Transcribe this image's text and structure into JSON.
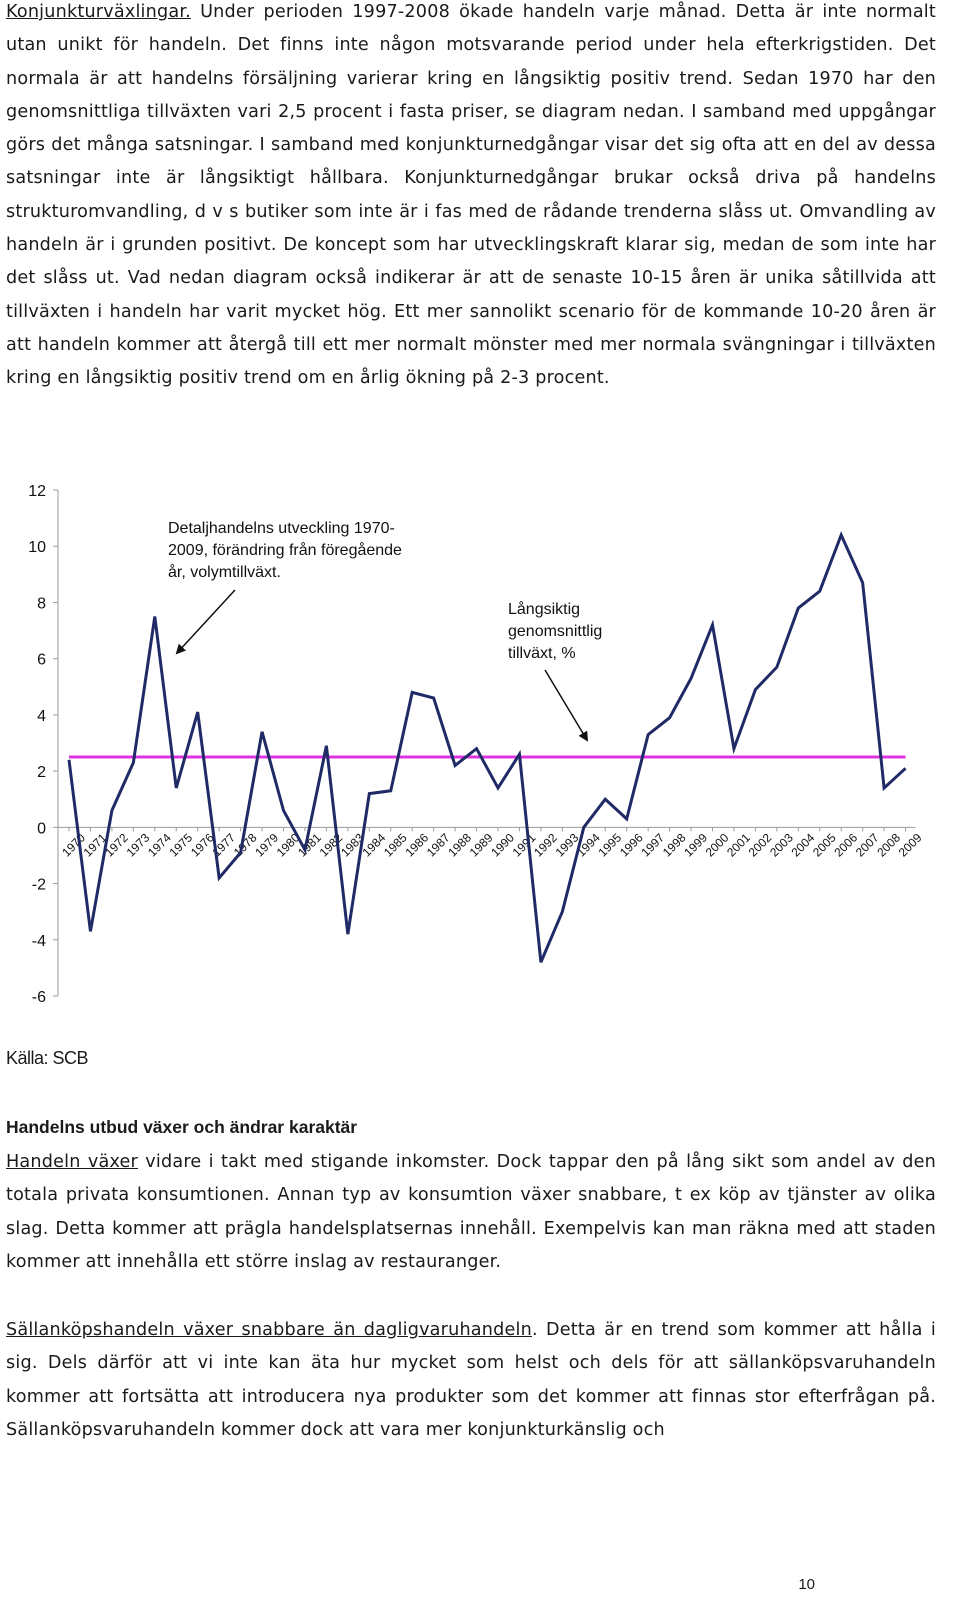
{
  "intro": {
    "link": "Konjunkturväxlingar.",
    "text": " Under perioden 1997-2008 ökade handeln varje månad. Detta är inte normalt utan unikt för handeln. Det finns inte någon motsvarande period under hela efterkrigstiden. Det normala är att handelns försäljning varierar kring en långsiktig positiv trend. Sedan 1970 har den genomsnittliga tillväxten vari 2,5 procent i fasta priser, se diagram nedan. I samband med uppgångar görs det många satsningar. I samband med konjunkturnedgångar visar det sig ofta att en del av dessa satsningar inte är långsiktigt hållbara. Konjunkturnedgångar brukar också driva på handelns strukturomvandling, d v s butiker som inte är i fas med de rådande trenderna slåss ut. Omvandling av handeln är i grunden positivt. De koncept som har utvecklingskraft klarar sig, medan de som inte har det slåss ut. Vad nedan diagram också indikerar är att de senaste 10-15 åren är unika såtillvida att tillväxten i handeln har varit mycket hög. Ett mer sannolikt scenario för de kommande 10-20 åren är att handeln kommer att återgå till ett mer normalt mönster med mer normala svängningar i tillväxten kring en långsiktig positiv trend om en årlig ökning på 2-3 procent."
  },
  "chart_data": {
    "type": "line",
    "x": [
      "1970",
      "1971",
      "1972",
      "1973",
      "1974",
      "1975",
      "1976",
      "1977",
      "1978",
      "1979",
      "1980",
      "1981",
      "1982",
      "1983",
      "1984",
      "1985",
      "1986",
      "1987",
      "1988",
      "1989",
      "1990",
      "1991",
      "1992",
      "1993",
      "1994",
      "1995",
      "1996",
      "1997",
      "1998",
      "1999",
      "2000",
      "2001",
      "2002",
      "2003",
      "2004",
      "2005",
      "2006",
      "2007",
      "2008",
      "2009"
    ],
    "series": [
      {
        "values": [
          2.4,
          -3.7,
          0.6,
          2.3,
          7.5,
          1.4,
          4.1,
          -1.8,
          -0.9,
          3.4,
          0.6,
          -0.8,
          2.9,
          -3.8,
          1.2,
          1.3,
          4.8,
          4.6,
          2.2,
          2.8,
          1.4,
          2.6,
          -4.8,
          -3.0,
          0.0,
          1.0,
          0.3,
          3.3,
          3.9,
          5.3,
          7.2,
          2.8,
          4.9,
          5.7,
          7.8,
          8.4,
          10.4,
          8.7,
          1.4,
          2.1
        ],
        "color": "#1f2a66"
      },
      {
        "values": [
          2.5,
          2.5,
          2.5,
          2.5,
          2.5,
          2.5,
          2.5,
          2.5,
          2.5,
          2.5,
          2.5,
          2.5,
          2.5,
          2.5,
          2.5,
          2.5,
          2.5,
          2.5,
          2.5,
          2.5,
          2.5,
          2.5,
          2.5,
          2.5,
          2.5,
          2.5,
          2.5,
          2.5,
          2.5,
          2.5,
          2.5,
          2.5,
          2.5,
          2.5,
          2.5,
          2.5,
          2.5,
          2.5,
          2.5,
          2.5
        ],
        "color": "#e033e0"
      }
    ],
    "yticks": [
      "12",
      "10",
      "8",
      "6",
      "4",
      "2",
      "0",
      "-2",
      "-4",
      "-6"
    ],
    "ylim": [
      -6,
      12
    ],
    "grid": false,
    "legend": "none",
    "annotations": [
      {
        "text": [
          "Detaljhandelns utveckling 1970-",
          "2009, förändring från föregående",
          "år, volymtillväxt."
        ]
      },
      {
        "text": [
          "Långsiktig",
          "genomsnittlig",
          "tillväxt, %"
        ]
      }
    ]
  },
  "source": "Källa: SCB",
  "section_heading": "Handelns utbud växer och ändrar karaktär",
  "para2": {
    "link": "Handeln växer",
    "text": " vidare i takt med stigande inkomster. Dock tappar den på lång sikt som andel av den totala privata konsumtionen. Annan typ av konsumtion växer snabbare, t ex köp av tjänster av olika slag. Detta kommer att prägla handelsplatsernas innehåll. Exempelvis kan man räkna med att staden kommer att innehålla ett större inslag av restauranger."
  },
  "para3": {
    "link": "Sällanköpshandeln växer snabbare än dagligvaruhandeln",
    "text": ". Detta är en trend som kommer att hålla i sig. Dels därför att vi inte kan äta hur mycket som helst och dels för att sällanköpsvaruhandeln kommer att fortsätta att introducera nya produkter som det kommer att finnas stor efterfrågan på. Sällanköpsvaruhandeln kommer dock att vara mer konjunkturkänslig och"
  },
  "page_number": "10"
}
